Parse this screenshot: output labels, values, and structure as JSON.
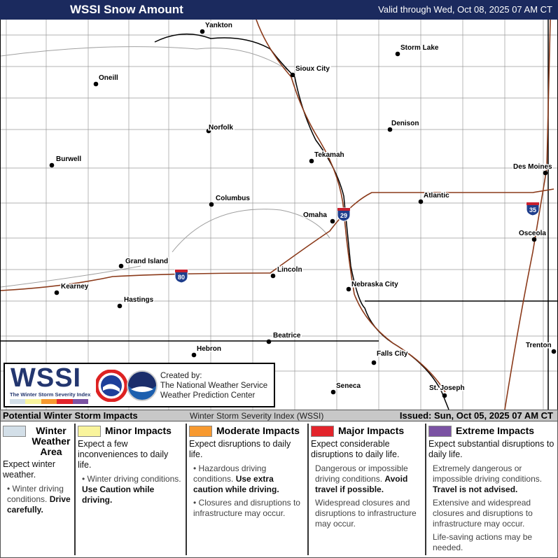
{
  "header": {
    "title": "WSSI Snow Amount",
    "valid": "Valid through Wed, Oct 08, 2025 07 AM CT"
  },
  "map": {
    "cities": [
      "Yankton",
      "Sioux City",
      "Storm Lake",
      "Oneill",
      "Norfolk",
      "Denison",
      "Burwell",
      "Tekamah",
      "Des Moines",
      "Columbus",
      "Atlantic",
      "Omaha",
      "Osceola",
      "Grand Island",
      "Lincoln",
      "Kearney",
      "Nebraska City",
      "Hastings",
      "Beatrice",
      "Trenton",
      "Hebron",
      "Falls City",
      "Seneca",
      "St. Joseph"
    ],
    "interstates": [
      "29",
      "80",
      "35"
    ],
    "colors": {
      "state_border": "#000000",
      "county_line": "#9a9a9a",
      "interstate": "#8b3a1a",
      "river": "#a0a0a0",
      "shield": "#1f3e8c"
    }
  },
  "logo": {
    "wssi": "WSSI",
    "subtitle": "The Winter Storm Severity Index",
    "created_by": "Created by:",
    "org1": "The National Weather Service",
    "org2": "Weather Prediction Center",
    "nws_icon": "nws-logo",
    "noaa_icon": "noaa-logo"
  },
  "legend_bar": {
    "left": "Potential Winter Storm Impacts",
    "center": "Winter Storm Severity Index (WSSI)",
    "right": "Issued: Sun, Oct 05, 2025 07 AM CT"
  },
  "impacts": [
    {
      "name": "Winter Weather Area",
      "color": "#d3dfe8",
      "expect": "Expect winter weather.",
      "items": [
        {
          "text": "Winter driving conditions. ",
          "bold": "Drive carefully."
        }
      ]
    },
    {
      "name": "Minor Impacts",
      "color": "#f9f49c",
      "expect": "Expect a few inconveniences to daily life.",
      "items": [
        {
          "text": "Winter driving conditions. ",
          "bold": "Use Caution while driving."
        }
      ]
    },
    {
      "name": "Moderate Impacts",
      "color": "#f7992f",
      "expect": "Expect disruptions to daily life.",
      "items": [
        {
          "text": "Hazardous driving conditions. ",
          "bold": "Use extra caution while driving."
        },
        {
          "text": "Closures and disruptions to infrastructure may occur.",
          "bold": ""
        }
      ]
    },
    {
      "name": "Major Impacts",
      "color": "#e3242b",
      "expect": "Expect considerable disruptions to daily life.",
      "items": [
        {
          "text": "Dangerous or impossible driving conditions. ",
          "bold": "Avoid travel if possible."
        },
        {
          "text": "Widespread closures and disruptions to infrastructure may occur.",
          "bold": ""
        }
      ]
    },
    {
      "name": "Extreme Impacts",
      "color": "#7b52a3",
      "expect": "Expect substantial disruptions to daily life.",
      "items": [
        {
          "text": "Extremely dangerous or impossible driving conditions. ",
          "bold": "Travel is not advised."
        },
        {
          "text": "Extensive and widespread closures and disruptions to infrastructure may occur.",
          "bold": ""
        },
        {
          "text": "Life-saving actions may be needed.",
          "bold": ""
        }
      ]
    }
  ]
}
